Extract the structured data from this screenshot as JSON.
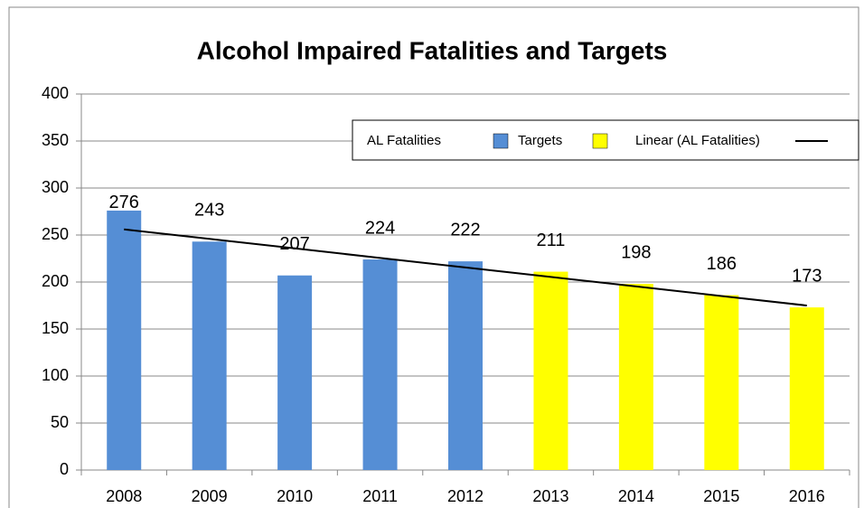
{
  "chart_data": {
    "type": "bar",
    "title": "Alcohol Impaired Fatalities and Targets",
    "categories": [
      "2008",
      "2009",
      "2010",
      "2011",
      "2012",
      "2013",
      "2014",
      "2015",
      "2016"
    ],
    "series": [
      {
        "name": "AL Fatalities",
        "color": "#558ed5",
        "values": [
          276,
          243,
          207,
          224,
          222,
          null,
          null,
          null,
          null
        ]
      },
      {
        "name": "Targets",
        "color": "#ffff00",
        "values": [
          null,
          null,
          null,
          null,
          null,
          211,
          198,
          186,
          173
        ]
      },
      {
        "name": "Linear (AL Fatalities)",
        "color": "#000000",
        "type": "line",
        "values": [
          256,
          245.9,
          235.8,
          225.6,
          215.5,
          205.4,
          195.3,
          185.1,
          175
        ]
      }
    ],
    "ylim": [
      0,
      400
    ],
    "yticks": [
      0,
      50,
      100,
      150,
      200,
      250,
      300,
      350,
      400
    ],
    "grid": true,
    "legend": "top-right"
  }
}
